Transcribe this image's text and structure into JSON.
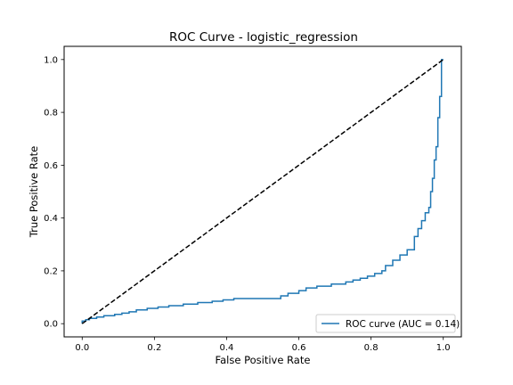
{
  "chart_data": {
    "type": "line",
    "title": "ROC Curve - logistic_regression",
    "xlabel": "False Positive Rate",
    "ylabel": "True Positive Rate",
    "xlim": [
      -0.05,
      1.05
    ],
    "ylim": [
      -0.05,
      1.05
    ],
    "xticks": [
      0.0,
      0.2,
      0.4,
      0.6,
      0.8,
      1.0
    ],
    "yticks": [
      0.0,
      0.2,
      0.4,
      0.6,
      0.8,
      1.0
    ],
    "xtick_labels": [
      "0.0",
      "0.2",
      "0.4",
      "0.6",
      "0.8",
      "1.0"
    ],
    "ytick_labels": [
      "0.0",
      "0.2",
      "0.4",
      "0.6",
      "0.8",
      "1.0"
    ],
    "grid": false,
    "legend_position": "bottom-right",
    "series": [
      {
        "name": "ROC curve (AUC = 0.14)",
        "color": "#1f77b4",
        "style": "solid",
        "x": [
          0.0,
          0.0,
          0.01,
          0.01,
          0.02,
          0.02,
          0.04,
          0.04,
          0.06,
          0.06,
          0.09,
          0.09,
          0.11,
          0.11,
          0.13,
          0.13,
          0.15,
          0.15,
          0.18,
          0.18,
          0.21,
          0.21,
          0.24,
          0.24,
          0.28,
          0.28,
          0.32,
          0.32,
          0.36,
          0.36,
          0.39,
          0.39,
          0.42,
          0.42,
          0.55,
          0.55,
          0.57,
          0.57,
          0.6,
          0.6,
          0.62,
          0.62,
          0.65,
          0.65,
          0.69,
          0.69,
          0.73,
          0.73,
          0.75,
          0.75,
          0.77,
          0.77,
          0.79,
          0.79,
          0.81,
          0.81,
          0.83,
          0.83,
          0.84,
          0.84,
          0.86,
          0.86,
          0.88,
          0.88,
          0.9,
          0.9,
          0.92,
          0.92,
          0.93,
          0.93,
          0.94,
          0.94,
          0.95,
          0.95,
          0.96,
          0.96,
          0.965,
          0.965,
          0.97,
          0.97,
          0.975,
          0.975,
          0.98,
          0.98,
          0.985,
          0.985,
          0.99,
          0.99,
          0.995,
          0.995,
          1.0,
          1.0
        ],
        "y": [
          0.0,
          0.01,
          0.01,
          0.015,
          0.015,
          0.02,
          0.02,
          0.025,
          0.025,
          0.03,
          0.03,
          0.035,
          0.035,
          0.04,
          0.04,
          0.045,
          0.045,
          0.052,
          0.052,
          0.058,
          0.058,
          0.063,
          0.063,
          0.068,
          0.068,
          0.074,
          0.074,
          0.08,
          0.08,
          0.085,
          0.085,
          0.09,
          0.09,
          0.095,
          0.095,
          0.105,
          0.105,
          0.115,
          0.115,
          0.125,
          0.125,
          0.135,
          0.135,
          0.142,
          0.142,
          0.15,
          0.15,
          0.158,
          0.158,
          0.165,
          0.165,
          0.172,
          0.172,
          0.18,
          0.18,
          0.19,
          0.19,
          0.2,
          0.2,
          0.22,
          0.22,
          0.24,
          0.24,
          0.26,
          0.26,
          0.28,
          0.28,
          0.33,
          0.33,
          0.36,
          0.36,
          0.39,
          0.39,
          0.42,
          0.42,
          0.44,
          0.44,
          0.5,
          0.5,
          0.55,
          0.55,
          0.62,
          0.62,
          0.67,
          0.67,
          0.78,
          0.78,
          0.86,
          0.86,
          1.0,
          1.0,
          1.0
        ]
      },
      {
        "name": "",
        "color": "#000000",
        "style": "dashed",
        "x": [
          0.0,
          1.0
        ],
        "y": [
          0.0,
          1.0
        ]
      }
    ]
  }
}
